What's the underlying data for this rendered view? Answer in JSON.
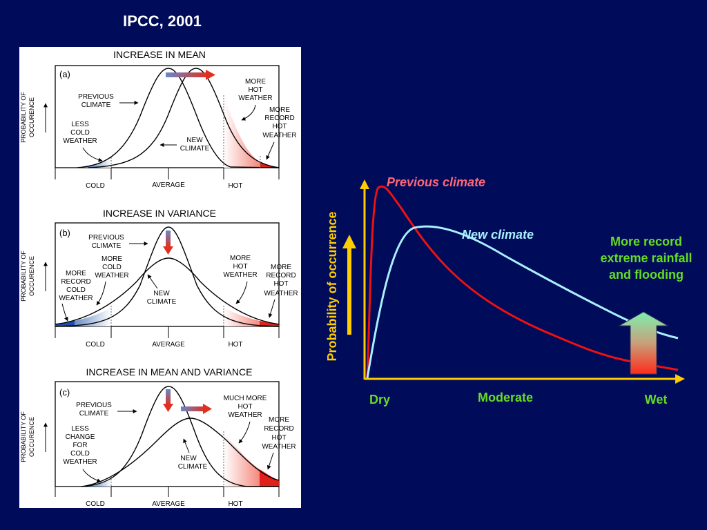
{
  "slide": {
    "title": "IPCC, 2001",
    "background_color": "#000c5a"
  },
  "panels": [
    {
      "heading": "INCREASE IN MEAN",
      "letter": "(a)",
      "y_label": [
        "PROBABILITY OF",
        "OCCURENCE"
      ],
      "x_labels": [
        "COLD",
        "AVERAGE",
        "HOT"
      ],
      "annotations": {
        "previous_climate": [
          "PREVIOUS",
          "CLIMATE"
        ],
        "new_climate": [
          "NEW",
          "CLIMATE"
        ],
        "cold_note": [
          "LESS",
          "COLD",
          "WEATHER"
        ],
        "hot_note": [
          "MORE",
          "HOT",
          "WEATHER"
        ],
        "record_note": [
          "MORE",
          "RECORD",
          "HOT",
          "WEATHER"
        ]
      }
    },
    {
      "heading": "INCREASE IN VARIANCE",
      "letter": "(b)",
      "y_label": [
        "PROBABILITY OF",
        "OCCURENCE"
      ],
      "x_labels": [
        "COLD",
        "AVERAGE",
        "HOT"
      ],
      "annotations": {
        "previous_climate": [
          "PREVIOUS",
          "CLIMATE"
        ],
        "new_climate": [
          "NEW",
          "CLIMATE"
        ],
        "cold_note": [
          "MORE",
          "COLD",
          "WEATHER"
        ],
        "record_cold_note": [
          "MORE",
          "RECORD",
          "COLD",
          "WEATHER"
        ],
        "hot_note": [
          "MORE",
          "HOT",
          "WEATHER"
        ],
        "record_note": [
          "MORE",
          "RECORD",
          "HOT",
          "WEATHER"
        ]
      }
    },
    {
      "heading": "INCREASE IN MEAN AND VARIANCE",
      "letter": "(c)",
      "y_label": [
        "PROBABILITY OF",
        "OCCURENCE"
      ],
      "x_labels": [
        "COLD",
        "AVERAGE",
        "HOT"
      ],
      "annotations": {
        "previous_climate": [
          "PREVIOUS",
          "CLIMATE"
        ],
        "new_climate": [
          "NEW",
          "CLIMATE"
        ],
        "cold_note": [
          "LESS",
          "CHANGE",
          "FOR",
          "COLD",
          "WEATHER"
        ],
        "hot_note": [
          "MUCH MORE",
          "HOT",
          "WEATHER"
        ],
        "record_note": [
          "MORE",
          "RECORD",
          "HOT",
          "WEATHER"
        ]
      }
    }
  ],
  "rainfall_chart": {
    "y_label": "Probability of occurrence",
    "x_labels": [
      "Dry",
      "Moderate",
      "Wet"
    ],
    "previous_label": "Previous climate",
    "new_label": "New climate",
    "side_note": "More record extreme rainfall and flooding",
    "colors": {
      "previous": "#ee1111",
      "new": "#aaf0ff",
      "axis": "#ffcc00",
      "previous_label": "#ff6677",
      "new_label": "#aaf0ff",
      "side_note": "#66dd22",
      "x_labels": "#66dd22"
    }
  }
}
